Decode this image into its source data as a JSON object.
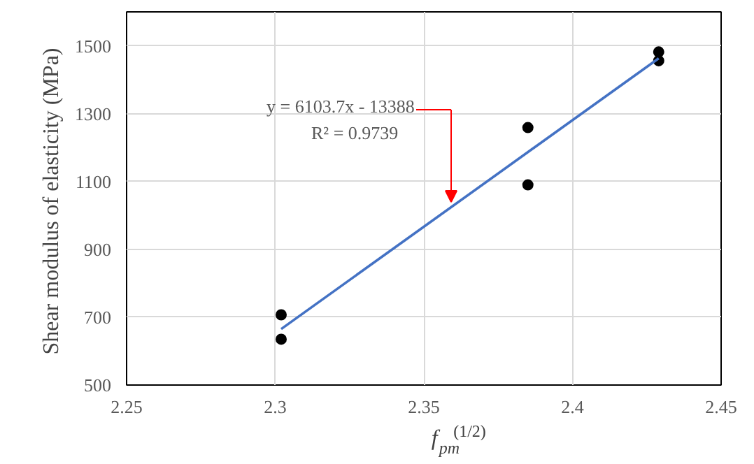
{
  "chart_data": {
    "type": "scatter",
    "xlabel": "f$_{pm}$$^{(1/2)}$",
    "ylabel": "Shear modulus of elasticity  (MPa)",
    "series": [
      {
        "color": "#000000",
        "marker": "circle",
        "x": [
          2.302,
          2.302,
          2.385,
          2.385,
          2.429,
          2.429
        ],
        "values": [
          707,
          635,
          1259,
          1090,
          1482,
          1456
        ]
      },
      {
        "type": "line",
        "color": "#4472c4",
        "x": [
          2.302,
          2.429
        ],
        "values": [
          665,
          1463
        ]
      }
    ],
    "annotations": [
      "y = 6103.7x - 13388",
      "R² = 0.9739"
    ],
    "xlim": [
      2.25,
      2.45
    ],
    "xticks": [
      2.25,
      2.3,
      2.35,
      2.4,
      2.45
    ],
    "ylim": [
      500,
      1600
    ],
    "yticks": [
      500,
      700,
      900,
      1100,
      1300,
      1500
    ],
    "grid": true
  }
}
